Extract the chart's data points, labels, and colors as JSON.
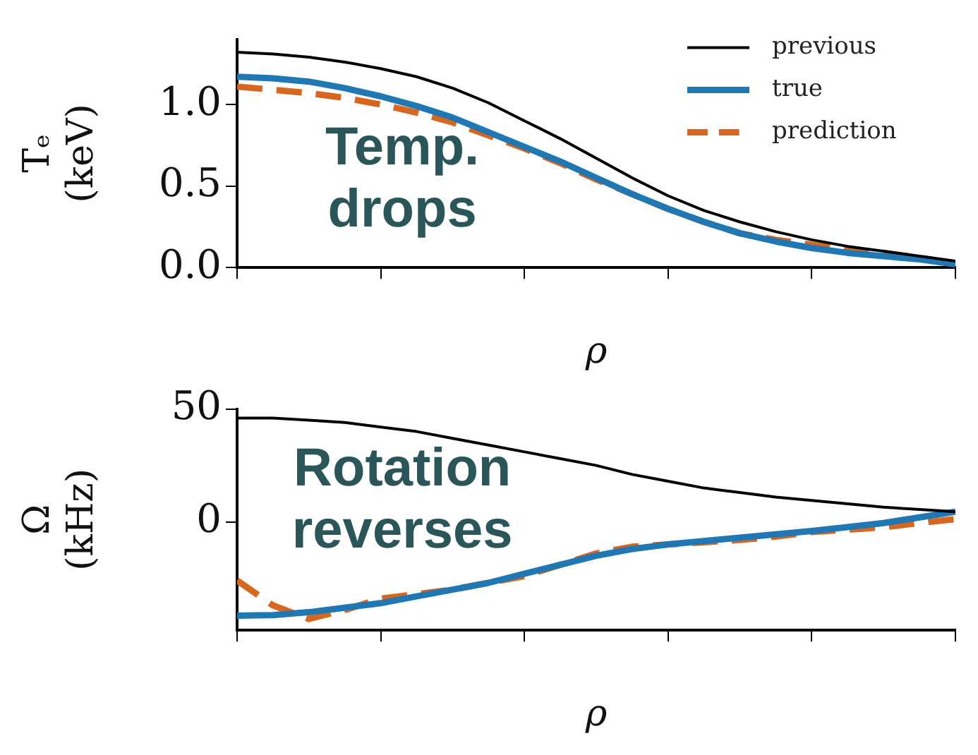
{
  "chart_data": [
    {
      "type": "line",
      "xlabel": "ρ",
      "ylabel": "Tₑ (keV)",
      "annotations": [
        "Temp. drops"
      ],
      "categories": [
        null,
        null,
        null,
        null,
        null,
        null,
        null,
        null,
        null,
        null,
        null,
        null,
        null,
        null,
        null,
        null,
        null,
        null,
        null,
        null,
        null
      ],
      "ylim": [
        0,
        1.4
      ],
      "yticks": [
        {
          "value": 0,
          "label": "0.0"
        },
        {
          "value": 0.5,
          "label": "0.5"
        },
        {
          "value": 1.0,
          "label": "1.0"
        }
      ],
      "tick_labels": "y",
      "grid": false,
      "legend": "top right",
      "series": [
        {
          "name": "previous",
          "color": "#000000",
          "line_style": "solid",
          "values": [
            1.32,
            1.31,
            1.29,
            1.26,
            1.22,
            1.17,
            1.1,
            1.01,
            0.9,
            0.79,
            0.67,
            0.55,
            0.44,
            0.35,
            0.28,
            0.22,
            0.17,
            0.13,
            0.1,
            0.07,
            0.04
          ]
        },
        {
          "name": "true",
          "color": "#1f77b4",
          "line_style": "solid",
          "values": [
            1.17,
            1.16,
            1.14,
            1.1,
            1.05,
            0.99,
            0.92,
            0.83,
            0.74,
            0.65,
            0.55,
            0.45,
            0.36,
            0.28,
            0.21,
            0.16,
            0.12,
            0.09,
            0.07,
            0.05,
            0.02
          ]
        },
        {
          "name": "prediction",
          "color": "#d9661f",
          "line_style": "dashed",
          "values": [
            1.11,
            1.09,
            1.07,
            1.04,
            1.0,
            0.95,
            0.89,
            0.81,
            0.73,
            0.64,
            0.54,
            0.45,
            0.36,
            0.28,
            0.21,
            0.17,
            0.14,
            0.11,
            0.09,
            0.06,
            0.02
          ]
        }
      ]
    },
    {
      "type": "line",
      "xlabel": "ρ",
      "ylabel": "Ω (kHz)",
      "annotations": [
        "Rotation reverses"
      ],
      "categories": [
        null,
        null,
        null,
        null,
        null,
        null,
        null,
        null,
        null,
        null,
        null,
        null,
        null,
        null,
        null,
        null,
        null,
        null,
        null,
        null,
        null
      ],
      "ylim": [
        -48,
        50
      ],
      "yticks": [
        0,
        50
      ],
      "tick_labels": "y",
      "grid": false,
      "series": [
        {
          "color": "#000000",
          "line_style": "solid",
          "values": [
            46,
            46,
            45,
            44,
            42,
            40,
            37,
            34,
            31,
            28,
            25,
            21,
            18,
            15,
            13,
            11,
            9.5,
            8,
            6.5,
            5.5,
            4.5
          ]
        },
        {
          "color": "#1f77b4",
          "line_style": "solid",
          "values": [
            -41.5,
            -41.3,
            -40,
            -38,
            -36,
            -33,
            -30,
            -27,
            -23,
            -19,
            -15,
            -12,
            -10,
            -8.5,
            -7,
            -5.5,
            -4,
            -2.3,
            -0.5,
            2,
            4.5
          ]
        },
        {
          "color": "#d9661f",
          "line_style": "dashed",
          "values": [
            -26,
            -37,
            -43,
            -39,
            -34,
            -32,
            -30,
            -27,
            -24,
            -19,
            -14,
            -11,
            -10,
            -9,
            -8,
            -6.5,
            -4.5,
            -3.5,
            -2.4,
            -0.5,
            1.2
          ]
        }
      ]
    }
  ]
}
